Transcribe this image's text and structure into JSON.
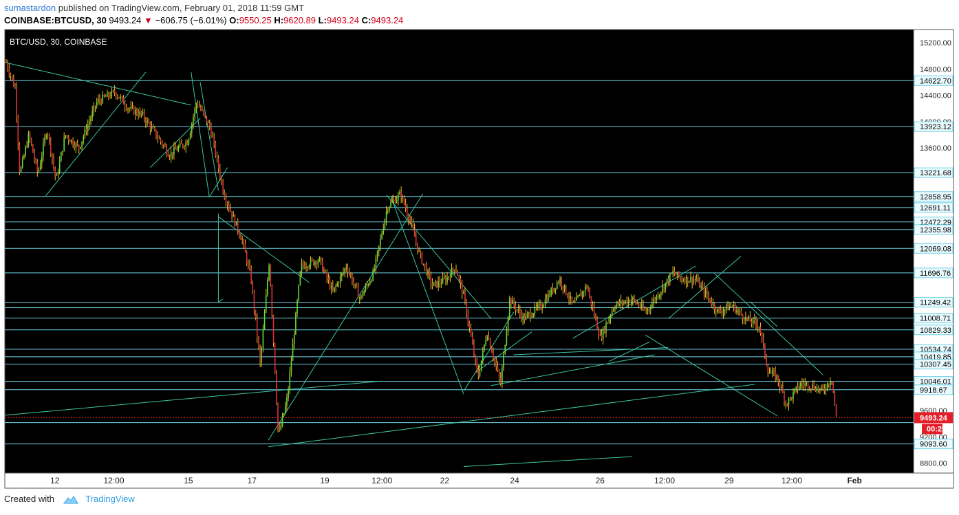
{
  "header": {
    "author": "sumastardon",
    "published_text": "published on TradingView.com, February 01, 2018 11:59 GMT",
    "symbol": "COINBASE:BTCUSD, 30",
    "last": "9493.24",
    "change": "−606.75 (−6.01%)",
    "open_label": "O:",
    "open": "9550.25",
    "high_label": "H:",
    "high": "9620.89",
    "low_label": "L:",
    "low": "9493.24",
    "close_label": "C:",
    "close": "9493.24"
  },
  "footer": {
    "created_with": "Created with",
    "brand": "TradingView"
  },
  "chart_data": {
    "type": "candlestick",
    "title": "BTC/USD, 30, COINBASE",
    "ylim": [
      8650,
      15400
    ],
    "y_ticks": [
      15200,
      14800,
      14400,
      14000,
      13600,
      9600,
      9200,
      8800
    ],
    "x_ticks": [
      "12",
      "12:00",
      "15",
      "17",
      "19",
      "12:00",
      "22",
      "24",
      "26",
      "12:00",
      "29",
      "12:00",
      "Feb"
    ],
    "x_tick_pos": [
      0.055,
      0.12,
      0.202,
      0.272,
      0.352,
      0.415,
      0.484,
      0.561,
      0.655,
      0.726,
      0.797,
      0.866,
      0.935
    ],
    "price_lines": [
      14622.7,
      13923.12,
      13221.68,
      12858.95,
      12691.11,
      12472.29,
      12355.98,
      12069.08,
      11696.76,
      11249.42,
      11167.15,
      11008.71,
      10829.33,
      10534.74,
      10419.85,
      10307.45,
      10046.01,
      9918.67,
      9418.46,
      9093.6
    ],
    "price_labels": [
      "14622.70",
      "13923.12",
      "13221.68",
      "12858.95",
      "12691.11",
      "12472.29",
      "12355.98",
      "12069.08",
      "11696.76",
      "11249.42",
      "11008.71",
      "10829.33",
      "10534.74",
      "10419.85",
      "10307.45",
      "10046.01",
      "9918.67",
      "9093.60"
    ],
    "last_price": 9493.24,
    "last_price_label": "9493.24",
    "countdown": "00:25",
    "path": [
      [
        0,
        14900
      ],
      [
        0.01,
        14500
      ],
      [
        0.015,
        13200
      ],
      [
        0.025,
        13800
      ],
      [
        0.035,
        13200
      ],
      [
        0.045,
        13900
      ],
      [
        0.055,
        13100
      ],
      [
        0.065,
        13800
      ],
      [
        0.08,
        13600
      ],
      [
        0.1,
        14300
      ],
      [
        0.12,
        14450
      ],
      [
        0.135,
        14200
      ],
      [
        0.15,
        14100
      ],
      [
        0.165,
        13800
      ],
      [
        0.18,
        13500
      ],
      [
        0.2,
        13700
      ],
      [
        0.21,
        14300
      ],
      [
        0.225,
        13900
      ],
      [
        0.24,
        12900
      ],
      [
        0.26,
        12200
      ],
      [
        0.27,
        11600
      ],
      [
        0.28,
        10300
      ],
      [
        0.29,
        11900
      ],
      [
        0.3,
        9200
      ],
      [
        0.31,
        9800
      ],
      [
        0.325,
        11800
      ],
      [
        0.345,
        11900
      ],
      [
        0.36,
        11400
      ],
      [
        0.375,
        11800
      ],
      [
        0.39,
        11300
      ],
      [
        0.405,
        11700
      ],
      [
        0.42,
        12700
      ],
      [
        0.435,
        12900
      ],
      [
        0.445,
        12500
      ],
      [
        0.455,
        12000
      ],
      [
        0.47,
        11500
      ],
      [
        0.485,
        11600
      ],
      [
        0.495,
        11800
      ],
      [
        0.505,
        11300
      ],
      [
        0.52,
        10100
      ],
      [
        0.53,
        10800
      ],
      [
        0.545,
        10000
      ],
      [
        0.555,
        11300
      ],
      [
        0.57,
        11000
      ],
      [
        0.59,
        11200
      ],
      [
        0.61,
        11600
      ],
      [
        0.625,
        11200
      ],
      [
        0.64,
        11500
      ],
      [
        0.655,
        10700
      ],
      [
        0.67,
        11200
      ],
      [
        0.69,
        11300
      ],
      [
        0.705,
        11100
      ],
      [
        0.72,
        11400
      ],
      [
        0.735,
        11700
      ],
      [
        0.745,
        11600
      ],
      [
        0.76,
        11600
      ],
      [
        0.77,
        11400
      ],
      [
        0.785,
        11100
      ],
      [
        0.8,
        11200
      ],
      [
        0.815,
        11000
      ],
      [
        0.83,
        10900
      ],
      [
        0.84,
        10200
      ],
      [
        0.85,
        10100
      ],
      [
        0.86,
        9700
      ],
      [
        0.875,
        10000
      ],
      [
        0.885,
        10000
      ],
      [
        0.9,
        9900
      ],
      [
        0.91,
        10100
      ],
      [
        0.915,
        9493
      ]
    ],
    "trendlines": [
      [
        0.0,
        14900,
        0.205,
        14250
      ],
      [
        0.045,
        12870,
        0.155,
        14750
      ],
      [
        0.16,
        13300,
        0.215,
        14050
      ],
      [
        0.205,
        14750,
        0.225,
        12850
      ],
      [
        0.215,
        14600,
        0.235,
        12950
      ],
      [
        0.225,
        12850,
        0.245,
        13300
      ],
      [
        0.235,
        12550,
        0.335,
        11550
      ],
      [
        0.235,
        12600,
        0.235,
        11250
      ],
      [
        0.235,
        11250,
        0.24,
        11300
      ],
      [
        0.29,
        9150,
        0.46,
        12900
      ],
      [
        0.29,
        9050,
        0.825,
        10000
      ],
      [
        0.0,
        9530,
        0.415,
        10050
      ],
      [
        0.42,
        12880,
        0.535,
        11000
      ],
      [
        0.425,
        12850,
        0.505,
        9850
      ],
      [
        0.505,
        9900,
        0.56,
        11100
      ],
      [
        0.52,
        10200,
        0.58,
        10800
      ],
      [
        0.535,
        9980,
        0.715,
        10450
      ],
      [
        0.56,
        10450,
        0.73,
        10560
      ],
      [
        0.625,
        10700,
        0.76,
        11800
      ],
      [
        0.665,
        10350,
        0.71,
        10650
      ],
      [
        0.73,
        11000,
        0.81,
        11950
      ],
      [
        0.705,
        10750,
        0.85,
        9520
      ],
      [
        0.78,
        11700,
        0.9,
        10150
      ],
      [
        0.82,
        11260,
        0.85,
        10880
      ],
      [
        0.505,
        8750,
        0.69,
        8900
      ]
    ]
  }
}
